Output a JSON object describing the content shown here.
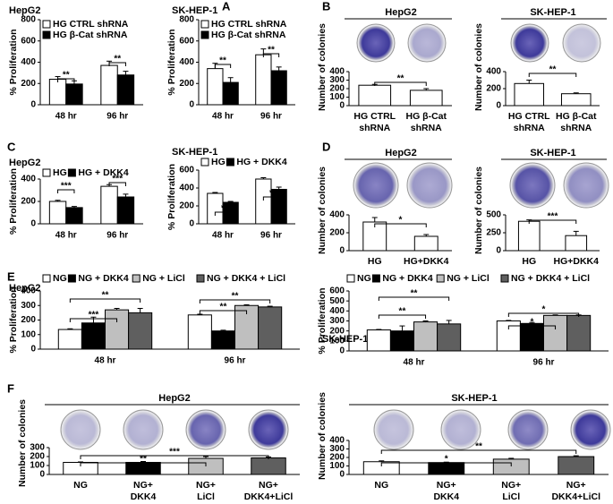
{
  "chart_data": [
    {
      "type": "bar",
      "panel": "A",
      "title": "HepG2",
      "ylabel": "% Proliferation",
      "categories": [
        "48 hr",
        "96 hr"
      ],
      "series": [
        {
          "name": "HG CTRL shRNA",
          "color": "#ffffff",
          "values": [
            240,
            370
          ],
          "errors": [
            25,
            40
          ]
        },
        {
          "name": "HG β-Cat shRNA",
          "color": "#000000",
          "values": [
            195,
            280
          ],
          "errors": [
            30,
            35
          ]
        }
      ],
      "ylim": [
        0,
        800
      ],
      "yticks": [
        0,
        200,
        400,
        600,
        800
      ],
      "legend": "upper left",
      "annotations": [
        "**",
        "**"
      ]
    },
    {
      "type": "bar",
      "title": "SK-HEP-1",
      "ylabel": "% Proliferation",
      "categories": [
        "48 hr",
        "96 hr"
      ],
      "series": [
        {
          "name": "HG CTRL shRNA",
          "color": "#ffffff",
          "values": [
            340,
            470
          ],
          "errors": [
            50,
            55
          ]
        },
        {
          "name": "HG β-Cat shRNA",
          "color": "#000000",
          "values": [
            210,
            320
          ],
          "errors": [
            45,
            35
          ]
        }
      ],
      "ylim": [
        0,
        800
      ],
      "yticks": [
        0,
        200,
        400,
        600,
        800
      ],
      "legend": "upper left",
      "annotations": [
        "**",
        "**"
      ]
    },
    {
      "type": "bar",
      "panel": "B",
      "title": "HepG2",
      "ylabel": "Number of colonies",
      "categories": [
        [
          "HG CTRL",
          "shRNA"
        ],
        [
          "HG β-Cat",
          "shRNA"
        ]
      ],
      "values": [
        240,
        180
      ],
      "errors": [
        10,
        20
      ],
      "color": "#ffffff",
      "ylim": [
        0,
        400
      ],
      "yticks": [
        0,
        100,
        200,
        300,
        400
      ],
      "annotations": [
        "**"
      ]
    },
    {
      "type": "bar",
      "title": "SK-HEP-1",
      "ylabel": "Number of colonies",
      "categories": [
        [
          "HG CTRL",
          "shRNA"
        ],
        [
          "HG β-Cat",
          "shRNA"
        ]
      ],
      "values": [
        260,
        140
      ],
      "errors": [
        40,
        10
      ],
      "color": "#ffffff",
      "ylim": [
        0,
        400
      ],
      "yticks": [
        0,
        200,
        400
      ],
      "annotations": [
        "**"
      ]
    },
    {
      "type": "bar",
      "panel": "C",
      "title": "HepG2",
      "ylabel": "% Proliferation",
      "categories": [
        "48 hr",
        "96 hr"
      ],
      "series": [
        {
          "name": "HG",
          "color": "#ffffff",
          "values": [
            200,
            335
          ],
          "errors": [
            10,
            15
          ]
        },
        {
          "name": "HG + DKK4",
          "color": "#000000",
          "values": [
            145,
            240
          ],
          "errors": [
            10,
            25
          ]
        }
      ],
      "ylim": [
        0,
        400
      ],
      "yticks": [
        0,
        200,
        400
      ],
      "legend": "upper left",
      "annotations": [
        "***",
        "***"
      ]
    },
    {
      "type": "bar",
      "title": "SK-HEP-1",
      "ylabel": "% Proliferation",
      "categories": [
        "48 hr",
        "96 hr"
      ],
      "series": [
        {
          "name": "HG",
          "color": "#ffffff",
          "values": [
            340,
            500
          ],
          "errors": [
            10,
            15
          ]
        },
        {
          "name": "HG + DKK4",
          "color": "#000000",
          "values": [
            240,
            385
          ],
          "errors": [
            10,
            25
          ]
        }
      ],
      "ylim": [
        0,
        600
      ],
      "yticks": [
        0,
        200,
        400,
        600
      ],
      "legend": "upper left",
      "annotations": [
        "*",
        "*"
      ]
    },
    {
      "type": "bar",
      "panel": "D",
      "title": "HepG2",
      "ylabel": "Number of colonies",
      "categories": [
        [
          "HG"
        ],
        [
          "HG+DKK4"
        ]
      ],
      "values": [
        320,
        160
      ],
      "errors": [
        50,
        20
      ],
      "color": "#ffffff",
      "ylim": [
        0,
        400
      ],
      "yticks": [
        0,
        200,
        400
      ],
      "annotations": [
        "*"
      ]
    },
    {
      "type": "bar",
      "title": "SK-HEP-1",
      "ylabel": "Number of colonies",
      "categories": [
        [
          "HG"
        ],
        [
          "HG+DKK4"
        ]
      ],
      "values": [
        410,
        210
      ],
      "errors": [
        20,
        60
      ],
      "color": "#ffffff",
      "ylim": [
        0,
        500
      ],
      "yticks": [
        0,
        250,
        500
      ],
      "annotations": [
        "***"
      ]
    },
    {
      "type": "bar",
      "panel": "E",
      "title": "HepG2",
      "ylabel": "% Proliferation",
      "categories": [
        "48 hr",
        "96 hr"
      ],
      "series": [
        {
          "name": "NG",
          "color": "#ffffff",
          "values": [
            135,
            235
          ],
          "errors": [
            5,
            5
          ]
        },
        {
          "name": "NG + DKK4",
          "color": "#000000",
          "values": [
            180,
            125
          ],
          "errors": [
            40,
            5
          ]
        },
        {
          "name": "NG + LiCl",
          "color": "#bfbfbf",
          "values": [
            270,
            300
          ],
          "errors": [
            10,
            5
          ]
        },
        {
          "name": "NG + DKK4 + LiCl",
          "color": "#5f5f5f",
          "values": [
            250,
            290
          ],
          "errors": [
            30,
            5
          ]
        }
      ],
      "ylim": [
        0,
        400
      ],
      "yticks": [
        0,
        100,
        200,
        300,
        400
      ],
      "legend": "top",
      "annotations": [
        "**",
        "***",
        "**",
        "**"
      ]
    },
    {
      "type": "bar",
      "title": "SK-HEP-1",
      "ylabel": "% Proliferation",
      "categories": [
        "48 hr",
        "96 hr"
      ],
      "series": [
        {
          "name": "NG",
          "color": "#ffffff",
          "values": [
            210,
            300
          ],
          "errors": [
            5,
            5
          ]
        },
        {
          "name": "NG + DKK4",
          "color": "#000000",
          "values": [
            200,
            275
          ],
          "errors": [
            50,
            10
          ]
        },
        {
          "name": "NG + LiCl",
          "color": "#bfbfbf",
          "values": [
            290,
            355
          ],
          "errors": [
            10,
            5
          ]
        },
        {
          "name": "NG + DKK4 + LiCl",
          "color": "#5f5f5f",
          "values": [
            270,
            355
          ],
          "errors": [
            35,
            5
          ]
        }
      ],
      "ylim": [
        0,
        600
      ],
      "yticks": [
        0,
        100,
        200,
        300,
        400,
        500,
        600
      ],
      "legend": "top",
      "annotations": [
        "**",
        "**",
        "*",
        "*"
      ]
    },
    {
      "type": "bar",
      "panel": "F",
      "title": "HepG2",
      "ylabel": "Number of colonies",
      "categories": [
        [
          "NG"
        ],
        [
          "NG+",
          "DKK4"
        ],
        [
          "NG+",
          "LiCl"
        ],
        [
          "NG+",
          "DKK4+LiCl"
        ]
      ],
      "values": [
        135,
        135,
        180,
        185
      ],
      "errors": [
        5,
        10,
        20,
        10
      ],
      "colors": [
        "#ffffff",
        "#000000",
        "#bfbfbf",
        "#5f5f5f"
      ],
      "ylim": [
        0,
        300
      ],
      "yticks": [
        0,
        100,
        200,
        300
      ],
      "annotations": [
        "**",
        "***"
      ]
    },
    {
      "type": "bar",
      "title": "SK-HEP-1",
      "ylabel": "Number of colonies",
      "categories": [
        [
          "NG"
        ],
        [
          "NG+",
          "DKK4"
        ],
        [
          "NG+",
          "LiCl"
        ],
        [
          "NG+",
          "DKK4+LiCl"
        ]
      ],
      "values": [
        150,
        140,
        180,
        210
      ],
      "errors": [
        10,
        5,
        10,
        10
      ],
      "colors": [
        "#ffffff",
        "#000000",
        "#bfbfbf",
        "#5f5f5f"
      ],
      "ylim": [
        0,
        400
      ],
      "yticks": [
        0,
        100,
        200,
        300,
        400
      ],
      "annotations": [
        "*",
        "**"
      ]
    }
  ]
}
